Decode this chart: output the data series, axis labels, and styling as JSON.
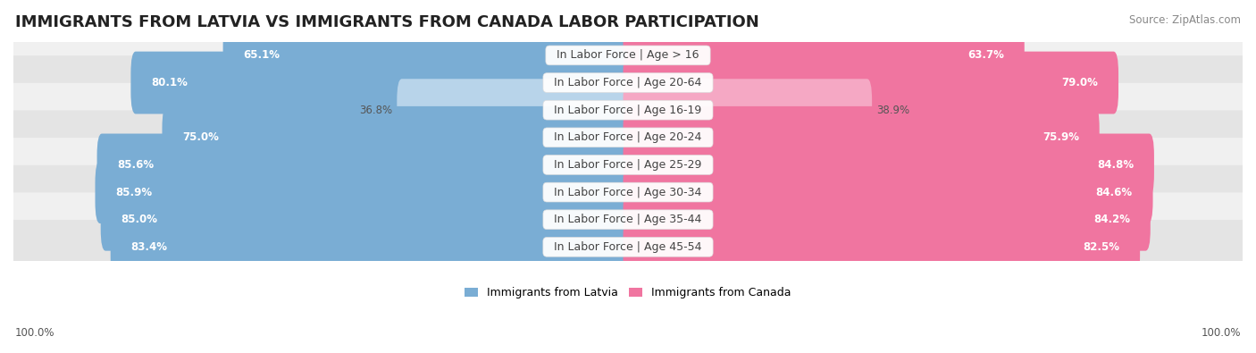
{
  "title": "IMMIGRANTS FROM LATVIA VS IMMIGRANTS FROM CANADA LABOR PARTICIPATION",
  "source": "Source: ZipAtlas.com",
  "categories": [
    "In Labor Force | Age > 16",
    "In Labor Force | Age 20-64",
    "In Labor Force | Age 16-19",
    "In Labor Force | Age 20-24",
    "In Labor Force | Age 25-29",
    "In Labor Force | Age 30-34",
    "In Labor Force | Age 35-44",
    "In Labor Force | Age 45-54"
  ],
  "latvia_values": [
    65.1,
    80.1,
    36.8,
    75.0,
    85.6,
    85.9,
    85.0,
    83.4
  ],
  "canada_values": [
    63.7,
    79.0,
    38.9,
    75.9,
    84.8,
    84.6,
    84.2,
    82.5
  ],
  "latvia_color": "#7aadd4",
  "canada_color": "#f075a0",
  "latvia_color_light": "#b8d4ea",
  "canada_color_light": "#f5a8c4",
  "row_bg_colors": [
    "#f0f0f0",
    "#e4e4e4"
  ],
  "max_value": 100.0,
  "legend_latvia": "Immigrants from Latvia",
  "legend_canada": "Immigrants from Canada",
  "title_fontsize": 13,
  "label_fontsize": 9,
  "value_fontsize": 8.5,
  "bottom_label": "100.0%"
}
